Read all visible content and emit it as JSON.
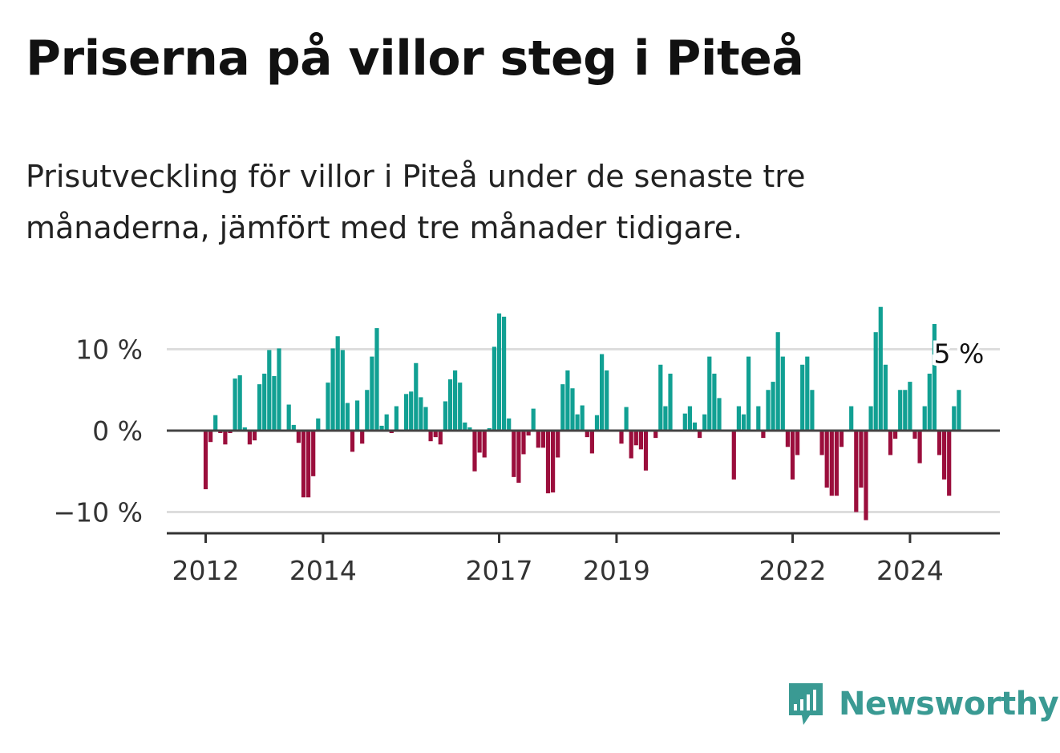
{
  "header": {
    "title": "Priserna på villor steg i Piteå",
    "subtitle": "Prisutveckling för villor i Piteå under de senaste tre månaderna, jämfört med tre månader tidigare."
  },
  "logo": {
    "text": "Newsworthy",
    "icon": "newsworthy-logo-icon",
    "color": "#3a9a93"
  },
  "chart_data": {
    "type": "bar",
    "unit": "%",
    "ylim": [
      -12.5,
      16
    ],
    "yticks": [
      10,
      0,
      -10
    ],
    "ytick_labels": [
      "10 %",
      "0 %",
      "−10 %"
    ],
    "xticks": [
      {
        "label": "2012",
        "value": 2012.0
      },
      {
        "label": "2014",
        "value": 2014.0
      },
      {
        "label": "2017",
        "value": 2017.0
      },
      {
        "label": "2019",
        "value": 2019.0
      },
      {
        "label": "2022",
        "value": 2022.0
      },
      {
        "label": "2024",
        "value": 2024.0
      }
    ],
    "x_start": 2012.0,
    "step": 0.08333,
    "annotation": {
      "text": "5 %",
      "bar": "last"
    },
    "colors": {
      "positive": "#11a093",
      "negative": "#9b0e3c",
      "grid": "#dddddd",
      "axis": "#444444"
    },
    "grid": true,
    "values": [
      -7.2,
      -1.4,
      1.9,
      -0.3,
      -1.7,
      -0.3,
      6.4,
      6.8,
      0.4,
      -1.7,
      -1.2,
      5.7,
      7.0,
      9.9,
      6.7,
      10.1,
      0.0,
      3.2,
      0.7,
      -1.5,
      -8.2,
      -8.2,
      -5.6,
      1.5,
      0.0,
      5.9,
      10.1,
      11.6,
      9.9,
      3.4,
      -2.6,
      3.7,
      -1.6,
      5.0,
      9.1,
      12.6,
      0.6,
      2.0,
      -0.3,
      3.0,
      0.0,
      4.5,
      4.8,
      8.3,
      4.1,
      2.9,
      -1.3,
      -0.8,
      -1.7,
      3.6,
      6.3,
      7.4,
      5.9,
      1.0,
      0.4,
      -5.0,
      -2.7,
      -3.3,
      0.3,
      10.3,
      14.4,
      14.0,
      1.5,
      -5.7,
      -6.4,
      -2.9,
      -0.6,
      2.7,
      -2.1,
      -2.1,
      -7.7,
      -7.6,
      -3.3,
      5.7,
      7.4,
      5.2,
      2.0,
      3.1,
      -0.8,
      -2.8,
      1.9,
      9.4,
      7.4,
      0.0,
      0.0,
      -1.6,
      2.9,
      -3.4,
      -1.8,
      -2.3,
      -4.9,
      0.0,
      -0.9,
      8.1,
      3.0,
      7.0,
      0.0,
      0.0,
      2.1,
      3.0,
      1.0,
      -0.9,
      2.0,
      9.1,
      7.0,
      4.0,
      0.0,
      0.0,
      -6.0,
      3.0,
      2.0,
      9.1,
      0.0,
      3.0,
      -0.9,
      5.0,
      6.0,
      12.1,
      9.1,
      -2.0,
      -6.0,
      -3.0,
      8.1,
      9.1,
      5.0,
      0.0,
      -3.0,
      -7.0,
      -8.0,
      -8.0,
      -2.0,
      0.0,
      3.0,
      -10.0,
      -7.0,
      -11.0,
      3.0,
      12.1,
      15.2,
      8.1,
      -3.0,
      -1.0,
      5.0,
      5.0,
      6.0,
      -1.0,
      -4.0,
      3.0,
      7.0,
      13.1,
      -3.0,
      -6.0,
      -8.0,
      3.0,
      5.0
    ]
  }
}
